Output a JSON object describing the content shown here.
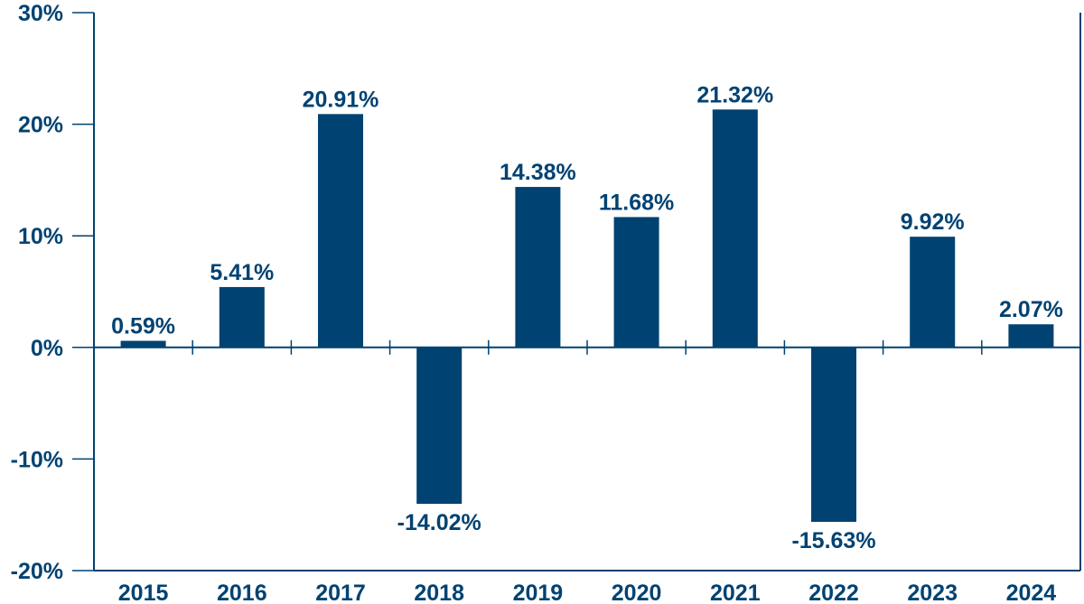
{
  "chart_data": {
    "type": "bar",
    "title": "",
    "xlabel": "",
    "ylabel": "",
    "categories": [
      "2015",
      "2016",
      "2017",
      "2018",
      "2019",
      "2020",
      "2021",
      "2022",
      "2023",
      "2024"
    ],
    "values": [
      0.59,
      5.41,
      20.91,
      -14.02,
      14.38,
      11.68,
      21.32,
      -15.63,
      9.92,
      2.07
    ],
    "data_labels": [
      "0.59%",
      "5.41%",
      "20.91%",
      "-14.02%",
      "14.38%",
      "11.68%",
      "21.32%",
      "-15.63%",
      "9.92%",
      "2.07%"
    ],
    "ylim": [
      -20,
      30
    ],
    "yticks": [
      30,
      20,
      10,
      0,
      -10,
      -20
    ],
    "ytick_labels": [
      "30%",
      "20%",
      "10%",
      "0%",
      "-10%",
      "-20%"
    ],
    "grid": false,
    "legend": "none",
    "colors": {
      "bar": "#004272",
      "axis": "#004272",
      "text": "#004272"
    }
  }
}
